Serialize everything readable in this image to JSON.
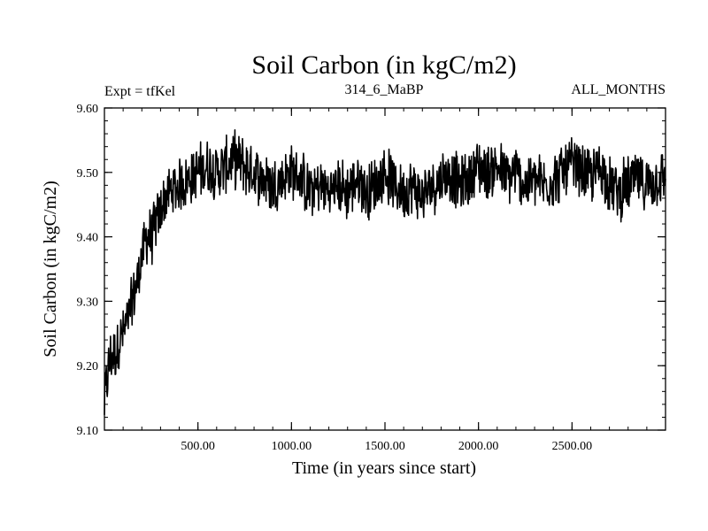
{
  "chart_data": {
    "type": "line",
    "title": "Soil Carbon (in kgC/m2)",
    "left_note": "Expt = tfKel",
    "center_note": "314_6_MaBP",
    "right_note": "ALL_MONTHS",
    "xlabel": "Time (in years since start)",
    "ylabel": "Soil Carbon (in kgC/m2)",
    "xlim": [
      0,
      3000
    ],
    "ylim": [
      9.1,
      9.6
    ],
    "xticks": [
      {
        "value": 500,
        "label": "500.00"
      },
      {
        "value": 1000,
        "label": "1000.00"
      },
      {
        "value": 1500,
        "label": "1500.00"
      },
      {
        "value": 2000,
        "label": "2000.00"
      },
      {
        "value": 2500,
        "label": "2500.00"
      }
    ],
    "yticks": [
      {
        "value": 9.1,
        "label": "9.10"
      },
      {
        "value": 9.2,
        "label": "9.20"
      },
      {
        "value": 9.3,
        "label": "9.30"
      },
      {
        "value": 9.4,
        "label": "9.40"
      },
      {
        "value": 9.5,
        "label": "9.50"
      },
      {
        "value": 9.6,
        "label": "9.60"
      }
    ],
    "grid": false,
    "series": [
      {
        "color": "#000000",
        "x": [
          0,
          10,
          25,
          40,
          60,
          80,
          100,
          125,
          150,
          175,
          200,
          225,
          250,
          275,
          300,
          325,
          350,
          400,
          450,
          500,
          550,
          600,
          650,
          700,
          750,
          800,
          850,
          900,
          950,
          1000,
          1050,
          1100,
          1150,
          1200,
          1250,
          1300,
          1350,
          1400,
          1450,
          1500,
          1550,
          1600,
          1650,
          1700,
          1750,
          1800,
          1850,
          1900,
          1950,
          2000,
          2050,
          2100,
          2150,
          2200,
          2250,
          2300,
          2350,
          2400,
          2450,
          2500,
          2550,
          2600,
          2650,
          2700,
          2750,
          2800,
          2850,
          2900,
          2950,
          3000
        ],
        "y": [
          9.14,
          9.17,
          9.2,
          9.22,
          9.22,
          9.24,
          9.25,
          9.27,
          9.3,
          9.33,
          9.37,
          9.4,
          9.4,
          9.42,
          9.44,
          9.46,
          9.47,
          9.48,
          9.49,
          9.5,
          9.51,
          9.5,
          9.51,
          9.52,
          9.51,
          9.5,
          9.49,
          9.48,
          9.49,
          9.5,
          9.49,
          9.47,
          9.48,
          9.47,
          9.48,
          9.47,
          9.49,
          9.47,
          9.48,
          9.5,
          9.48,
          9.47,
          9.48,
          9.46,
          9.48,
          9.49,
          9.5,
          9.48,
          9.49,
          9.51,
          9.5,
          9.51,
          9.49,
          9.5,
          9.48,
          9.49,
          9.48,
          9.49,
          9.5,
          9.51,
          9.5,
          9.49,
          9.51,
          9.48,
          9.47,
          9.48,
          9.49,
          9.48,
          9.49,
          9.49
        ],
        "variability": 0.05
      }
    ]
  }
}
